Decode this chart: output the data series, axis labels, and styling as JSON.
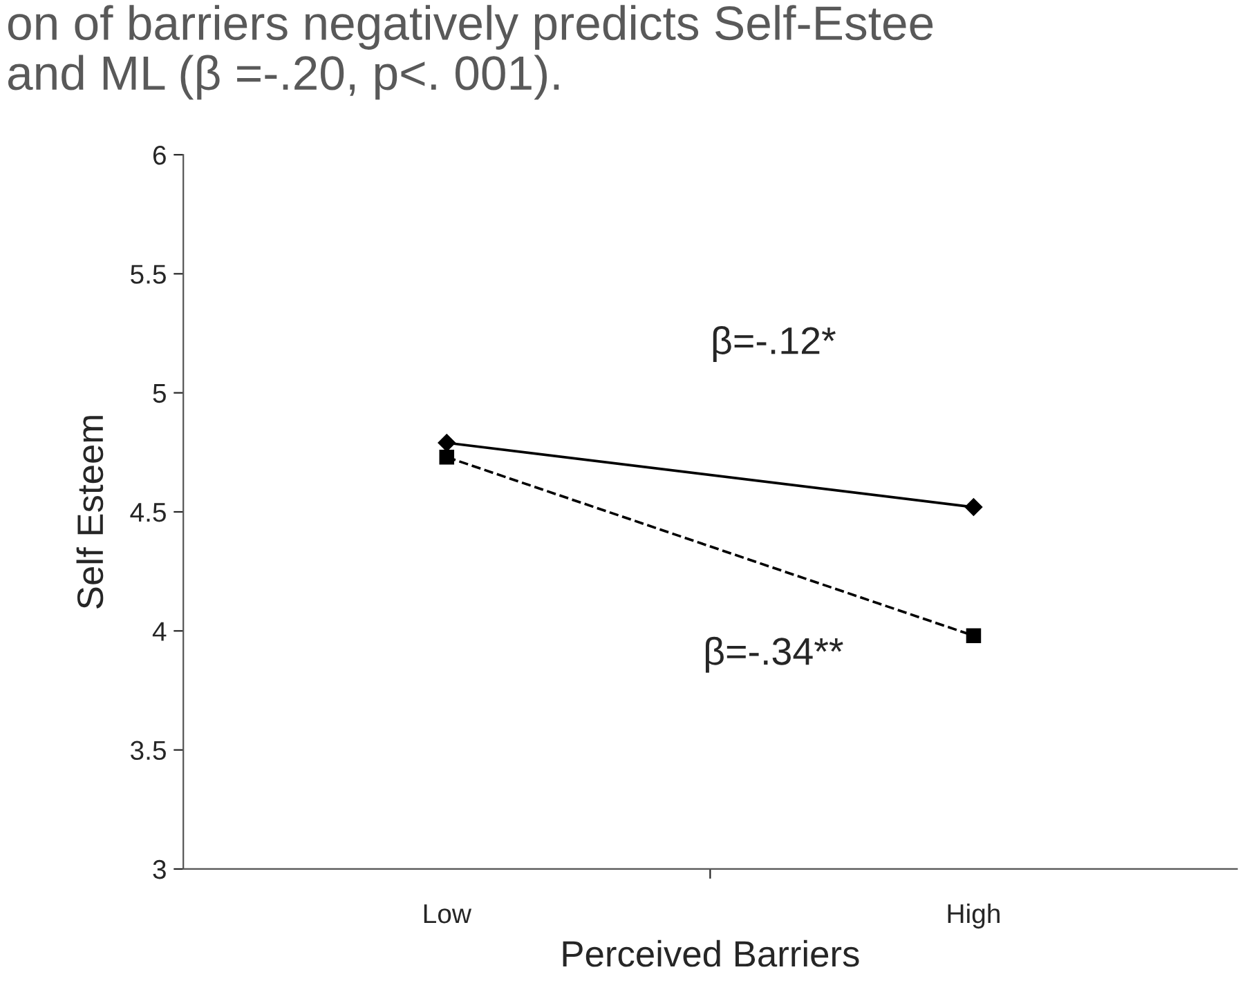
{
  "chart_data": {
    "type": "line",
    "title": "on of barriers negatively predicts Self-Estee\nand ML (β =-.20, p<. 001).",
    "xlabel": "Perceived Barriers",
    "ylabel": "Self Esteem",
    "categories": [
      "Low",
      "High"
    ],
    "series": [
      {
        "color": "#000000",
        "values": [
          4.79,
          4.52
        ],
        "marker": "diamond",
        "line_style": "solid"
      },
      {
        "color": "#000000",
        "values": [
          4.73,
          3.98
        ],
        "marker": "square",
        "line_style": "dashed"
      }
    ],
    "annotations": [
      "β=-.12*",
      "β=-.34**"
    ],
    "ylim": [
      3,
      6
    ],
    "yticks": [
      3,
      3.5,
      4,
      4.5,
      5,
      5.5,
      6
    ],
    "grid": false,
    "legend": false
  }
}
